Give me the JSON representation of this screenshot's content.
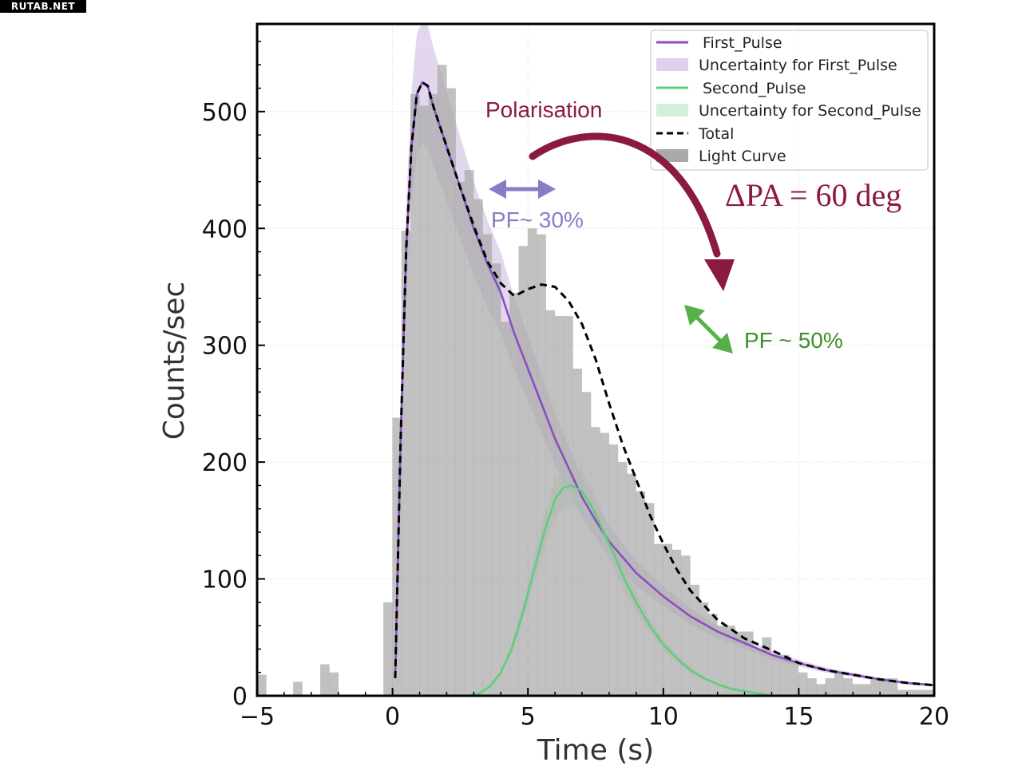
{
  "watermark": "RUTAB.NET",
  "chart_data": {
    "type": "bar",
    "xlabel": "Time (s)",
    "ylabel": "Counts/sec",
    "xlim": [
      -5,
      20
    ],
    "ylim": [
      0,
      575
    ],
    "xticks": [
      -5,
      0,
      5,
      10,
      15,
      20
    ],
    "yticks": [
      0,
      100,
      200,
      300,
      400,
      500
    ],
    "grid": true,
    "legend": {
      "placement": "top-right",
      "entries": [
        {
          "label": "First_Pulse",
          "kind": "line",
          "color": "#8a4fbf"
        },
        {
          "label": "Uncertainty for First_Pulse",
          "kind": "patch",
          "color": "#ddd0ea"
        },
        {
          "label": "Second_Pulse",
          "kind": "line",
          "color": "#5dcf7a"
        },
        {
          "label": "Uncertainty for Second_Pulse",
          "kind": "patch",
          "color": "#d3efdc"
        },
        {
          "label": "Total",
          "kind": "dashed",
          "color": "#000000"
        },
        {
          "label": "Light Curve",
          "kind": "patch",
          "color": "#a9a9a9"
        }
      ]
    },
    "light_curve": {
      "bin_start": -5,
      "bin_width": 0.333,
      "counts": [
        18,
        0,
        0,
        0,
        12,
        0,
        0,
        27,
        20,
        0,
        0,
        0,
        0,
        0,
        80,
        238,
        398,
        515,
        505,
        515,
        540,
        520,
        440,
        450,
        425,
        395,
        370,
        320,
        345,
        385,
        400,
        395,
        330,
        325,
        325,
        280,
        260,
        230,
        225,
        215,
        200,
        190,
        175,
        165,
        130,
        130,
        125,
        120,
        95,
        80,
        70,
        60,
        60,
        55,
        55,
        40,
        50,
        35,
        35,
        30,
        20,
        15,
        10,
        15,
        20,
        15,
        10,
        10,
        15,
        15,
        15,
        5,
        5,
        5,
        5
      ]
    },
    "series": [
      {
        "name": "First_Pulse",
        "color": "#8a4fbf",
        "x": [
          0.1,
          0.3,
          0.5,
          0.7,
          0.9,
          1.1,
          1.3,
          1.5,
          2,
          2.5,
          3,
          3.5,
          4,
          4.5,
          5,
          5.5,
          6,
          6.5,
          7,
          7.5,
          8,
          9,
          10,
          11,
          12,
          13,
          14,
          15,
          16,
          17,
          18,
          19,
          20
        ],
        "y": [
          15,
          220,
          380,
          470,
          515,
          525,
          522,
          505,
          470,
          435,
          400,
          370,
          345,
          310,
          280,
          250,
          220,
          195,
          170,
          150,
          132,
          105,
          85,
          68,
          55,
          45,
          35,
          28,
          22,
          18,
          14,
          11,
          9
        ]
      },
      {
        "name": "Second_Pulse",
        "color": "#5dcf7a",
        "x": [
          2.8,
          3.2,
          3.6,
          4,
          4.4,
          4.8,
          5.2,
          5.6,
          6,
          6.3,
          6.6,
          7,
          7.4,
          7.8,
          8.2,
          8.6,
          9,
          9.5,
          10,
          10.5,
          11,
          11.5,
          12,
          12.5,
          13,
          13.5,
          14
        ],
        "y": [
          0,
          2,
          8,
          20,
          40,
          70,
          105,
          140,
          168,
          178,
          180,
          175,
          160,
          140,
          120,
          98,
          80,
          60,
          44,
          32,
          22,
          15,
          10,
          6,
          4,
          2,
          0
        ]
      },
      {
        "name": "Total",
        "color": "#000000",
        "x": [
          0.1,
          0.3,
          0.5,
          0.7,
          0.9,
          1.1,
          1.3,
          1.5,
          2,
          2.5,
          3,
          3.5,
          4,
          4.5,
          5,
          5.5,
          6,
          6.5,
          7,
          7.5,
          8,
          8.5,
          9,
          9.5,
          10,
          10.5,
          11,
          12,
          13,
          14,
          15,
          16,
          17,
          18,
          19,
          20
        ],
        "y": [
          15,
          220,
          380,
          470,
          515,
          525,
          522,
          505,
          470,
          435,
          402,
          372,
          353,
          342,
          348,
          352,
          350,
          338,
          318,
          288,
          250,
          215,
          185,
          155,
          130,
          108,
          90,
          65,
          49,
          39,
          28,
          22,
          18,
          14,
          11,
          9
        ]
      }
    ],
    "annotations": {
      "polarisation": "Polarisation",
      "delta_pa": "ΔPA = 60 deg",
      "pf_first": "PF~ 30%",
      "pf_second": "PF ~ 50%"
    }
  }
}
